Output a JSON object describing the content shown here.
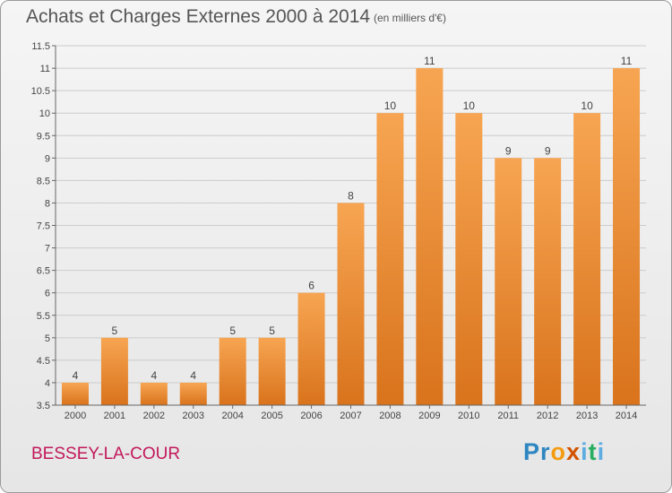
{
  "title": "Achats et Charges Externes 2000 à 2014",
  "subtitle": "(en milliers d'€)",
  "commune": "BESSEY-LA-COUR",
  "logo": {
    "letters": [
      "P",
      "r",
      "o",
      "x",
      "i",
      "t",
      "i"
    ],
    "colors": [
      "#2e86c1",
      "#2e86c1",
      "#f39c12",
      "#d35400",
      "#5dade2",
      "#27ae60",
      "#5dade2"
    ]
  },
  "colors": {
    "bar_top": "#f7a552",
    "bar_bottom": "#d9731c",
    "axis": "#666666",
    "grid": "#cccccc",
    "text": "#444444",
    "commune": "#c2185b"
  },
  "chart_data": {
    "type": "bar",
    "categories": [
      "2000",
      "2001",
      "2002",
      "2003",
      "2004",
      "2005",
      "2006",
      "2007",
      "2008",
      "2009",
      "2010",
      "2011",
      "2012",
      "2013",
      "2014"
    ],
    "values": [
      4,
      5,
      4,
      4,
      5,
      5,
      6,
      8,
      10,
      11,
      10,
      9,
      9,
      10,
      11
    ],
    "data_labels": [
      "4",
      "5",
      "4",
      "4",
      "5",
      "5",
      "6",
      "8",
      "10",
      "11",
      "10",
      "9",
      "9",
      "10",
      "11"
    ],
    "ylim": [
      3.5,
      11.5
    ],
    "yticks": [
      3.5,
      4,
      4.5,
      5,
      5.5,
      6,
      6.5,
      7,
      7.5,
      8,
      8.5,
      9,
      9.5,
      10,
      10.5,
      11,
      11.5
    ],
    "ytick_labels": [
      "3.5",
      "4",
      "4.5",
      "5",
      "5.5",
      "6",
      "6.5",
      "7",
      "7.5",
      "8",
      "8.5",
      "9",
      "9.5",
      "10",
      "10.5",
      "11",
      "11.5"
    ],
    "grid": true,
    "xlabel": "",
    "ylabel": ""
  }
}
